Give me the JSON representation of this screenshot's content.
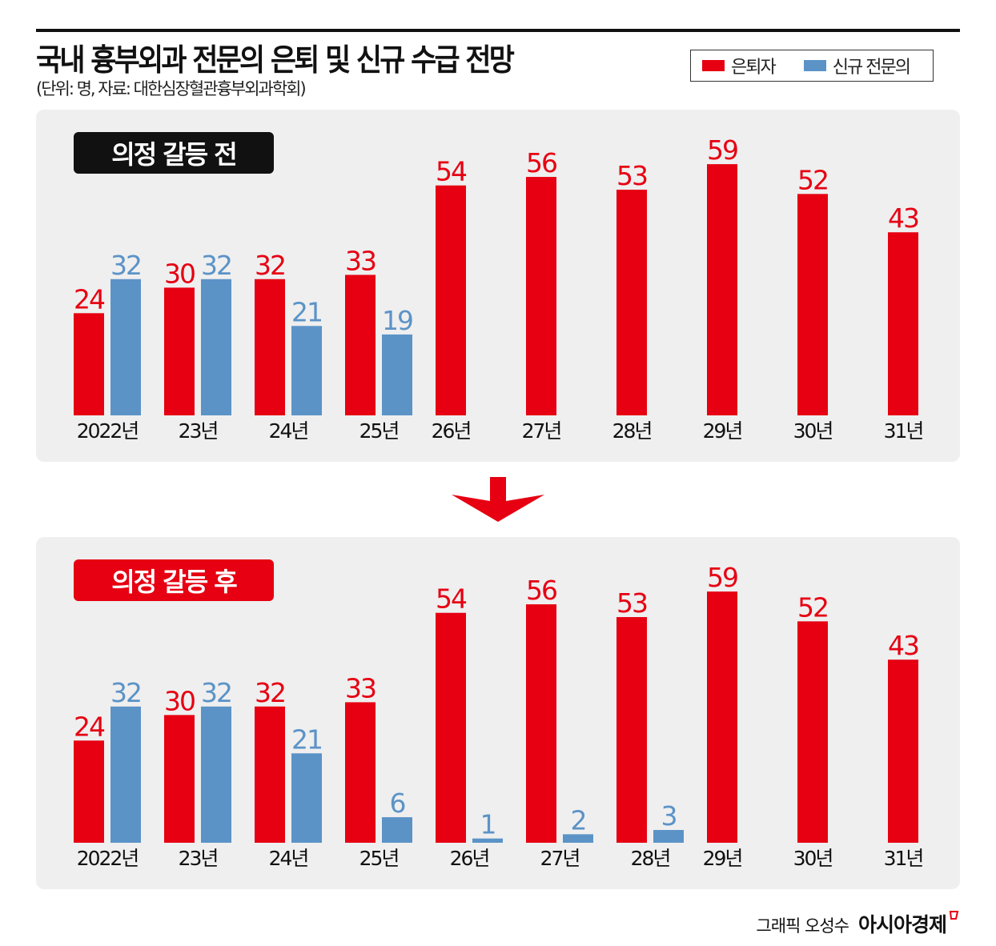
{
  "header": {
    "title": "국내 흉부외과 전문의 은퇴 및 신규 수급 전망",
    "subtitle": "(단위: 명, 자료: 대한심장혈관흉부외과학회)"
  },
  "legend": [
    {
      "label": "은퇴자",
      "color": "#e60012"
    },
    {
      "label": "신규 전문의",
      "color": "#5b93c7"
    }
  ],
  "footer": {
    "credit": "그래픽 오성수",
    "brand": "아시아경제"
  },
  "chart_data": [
    {
      "type": "bar",
      "title": "의정 갈등 전",
      "badge_color": "#111111",
      "categories": [
        "2022년",
        "23년",
        "24년",
        "25년",
        "26년",
        "27년",
        "28년",
        "29년",
        "30년",
        "31년"
      ],
      "series": [
        {
          "name": "은퇴자",
          "color": "#e60012",
          "values": [
            24,
            30,
            32,
            33,
            54,
            56,
            53,
            59,
            52,
            43
          ]
        },
        {
          "name": "신규 전문의",
          "color": "#5b93c7",
          "values": [
            32,
            32,
            21,
            19,
            null,
            null,
            null,
            null,
            null,
            null
          ]
        }
      ]
    },
    {
      "type": "bar",
      "title": "의정 갈등 후",
      "badge_color": "#e60012",
      "categories": [
        "2022년",
        "23년",
        "24년",
        "25년",
        "26년",
        "27년",
        "28년",
        "29년",
        "30년",
        "31년"
      ],
      "series": [
        {
          "name": "은퇴자",
          "color": "#e60012",
          "values": [
            24,
            30,
            32,
            33,
            54,
            56,
            53,
            59,
            52,
            43
          ]
        },
        {
          "name": "신규 전문의",
          "color": "#5b93c7",
          "values": [
            32,
            32,
            21,
            6,
            1,
            2,
            3,
            null,
            null,
            null
          ]
        }
      ]
    }
  ]
}
